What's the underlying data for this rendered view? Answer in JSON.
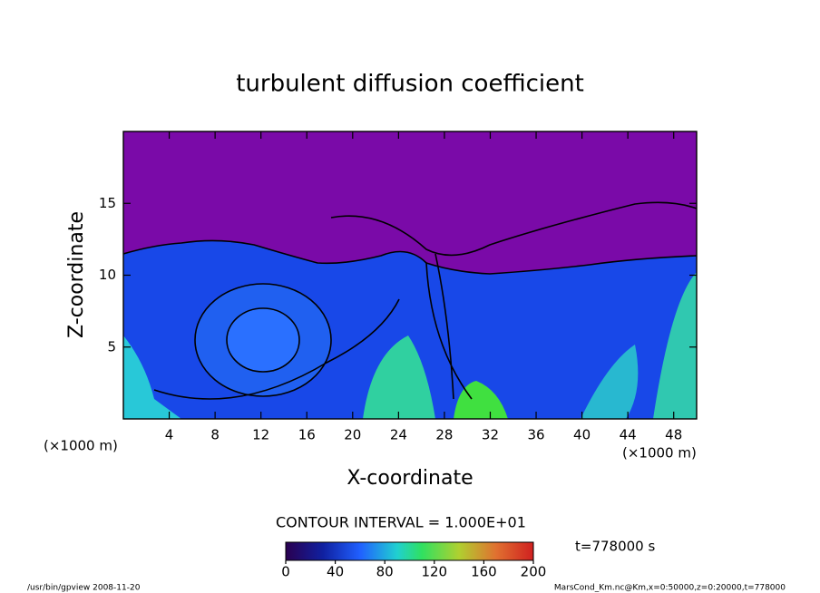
{
  "chart_data": {
    "type": "contour",
    "title": "turbulent diffusion coefficient",
    "x_label": "X-coordinate",
    "y_label": "Z-coordinate",
    "x_unit": "(×1000 m)",
    "y_unit": "(×1000 m)",
    "xlim": [
      0,
      50
    ],
    "xticks": [
      4,
      8,
      12,
      16,
      20,
      24,
      28,
      32,
      36,
      40,
      44,
      48
    ],
    "ylim": [
      0,
      20
    ],
    "yticks": [
      5,
      10,
      15
    ],
    "contour_interval": "CONTOUR INTERVAL = 1.000E+01",
    "colorbar": {
      "clim": [
        0,
        200
      ],
      "ticks": [
        0,
        40,
        80,
        120,
        160,
        200
      ]
    },
    "time": "t=778000 s",
    "footer_left": "/usr/bin/gpview   2008-11-20",
    "footer_right": "MarsCond_Km.nc@Km,x=0:50000,z=0:20000,t=778000"
  }
}
